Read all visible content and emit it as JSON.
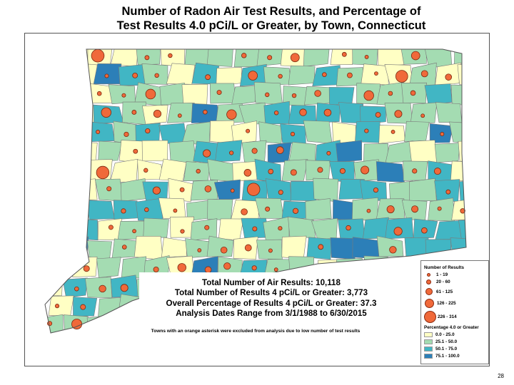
{
  "title_line1": "Number of Radon Air Test Results, and Percentage of",
  "title_line2": "Test Results 4.0 pCi/L or Greater, by Town, Connecticut",
  "stats": {
    "line1": "Total Number of Air Results: 10,118",
    "line2": "Total Number of Results 4 pCi/L or Greater: 3,773",
    "line3": "Overall Percentage of Results 4 pCi/L or Greater: 37.3",
    "line4": "Analysis Dates Range from 3/1/1988 to 6/30/2015"
  },
  "note": "Towns with an orange asterisk were excluded from analysis due to low number of test results",
  "legend": {
    "count_title": "Number of Results",
    "counts": [
      "1 - 19",
      "20 - 60",
      "61 - 125",
      "126 - 225",
      "226 - 314"
    ],
    "pct_title": "Percentage 4.0 or Greater",
    "classes": [
      {
        "label": "0.0 - 25.0",
        "color": "#ffffc4"
      },
      {
        "label": "25.1 - 50.0",
        "color": "#a4dcb2"
      },
      {
        "label": "50.1 - 75.0",
        "color": "#41b6c4"
      },
      {
        "label": "75.1 - 100.0",
        "color": "#2c7fb8"
      }
    ],
    "dot_color": "#f0693a"
  },
  "page_number": "28"
}
